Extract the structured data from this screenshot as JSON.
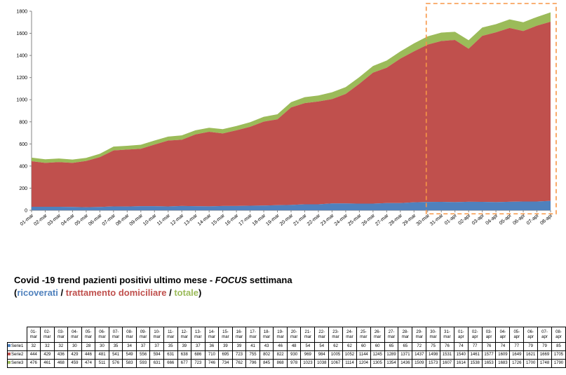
{
  "chart_data": {
    "type": "area",
    "stacked": true,
    "categories": [
      "01-mar",
      "02-mar",
      "03-mar",
      "04-mar",
      "05-mar",
      "06-mar",
      "07-mar",
      "08-mar",
      "09-mar",
      "10-mar",
      "11-mar",
      "12-mar",
      "13-mar",
      "14-mar",
      "15-mar",
      "16-mar",
      "17-mar",
      "18-mar",
      "19-mar",
      "20-mar",
      "21-mar",
      "22-mar",
      "23-mar",
      "24-mar",
      "25-mar",
      "26-mar",
      "27-mar",
      "28-mar",
      "29-mar",
      "30-mar",
      "31-mar",
      "01-apr",
      "02-apr",
      "03-apr",
      "04-apr",
      "05-apr",
      "06-apr",
      "07-apr",
      "08-apr"
    ],
    "series": [
      {
        "name": "Serie1",
        "color": "#4f81bd",
        "values": [
          32,
          32,
          32,
          30,
          28,
          30,
          35,
          34,
          37,
          37,
          35,
          39,
          37,
          36,
          39,
          39,
          41,
          43,
          46,
          48,
          54,
          54,
          62,
          62,
          60,
          60,
          65,
          65,
          72,
          75,
          76,
          74,
          77,
          76,
          74,
          77,
          79,
          79,
          85
        ]
      },
      {
        "name": "Serie2",
        "color": "#c0504d",
        "values": [
          444,
          429,
          436,
          429,
          446,
          481,
          541,
          549,
          556,
          594,
          631,
          638,
          686,
          710,
          695,
          723,
          755,
          802,
          822,
          930,
          969,
          984,
          1005,
          1052,
          1144,
          1245,
          1289,
          1371,
          1437,
          1498,
          1531,
          1540,
          1461,
          1577,
          1609,
          1649,
          1621,
          1669,
          1705
        ]
      },
      {
        "name": "Serie3",
        "color": "#9bbb59",
        "values": [
          476,
          461,
          468,
          459,
          474,
          511,
          576,
          583,
          593,
          631,
          666,
          677,
          723,
          746,
          734,
          762,
          796,
          845,
          868,
          978,
          1023,
          1038,
          1067,
          1114,
          1204,
          1305,
          1354,
          1436,
          1509,
          1573,
          1607,
          1614,
          1538,
          1653,
          1683,
          1726,
          1700,
          1748,
          1790
        ]
      }
    ],
    "ylim": [
      0,
      1800
    ],
    "yticks": [
      0,
      200,
      400,
      600,
      800,
      1000,
      1200,
      1400,
      1600,
      1800
    ],
    "grid": false,
    "highlight": {
      "from": "30-mar",
      "to": "08-apr",
      "style": "dashed",
      "color": "#f79646"
    },
    "table": {
      "header": [
        "01-mar",
        "02-mar",
        "03-mar",
        "04-mar",
        "05-mar",
        "06-mar",
        "07-mar",
        "08-mar",
        "09-mar",
        "10-mar",
        "11-mar",
        "12-mar",
        "13-mar",
        "14-mar",
        "15-mar",
        "16-mar",
        "17-mar",
        "18-mar",
        "19-mar",
        "20-mar",
        "21-mar",
        "22-mar",
        "23-mar",
        "24-mar",
        "25-mar",
        "26-mar",
        "27-mar",
        "28-mar",
        "29-mar",
        "30-mar",
        "31-mar",
        "01-apr",
        "02-apr",
        "03-apr",
        "04-apr",
        "05-apr",
        "06-apr",
        "07-apr",
        "08-apr"
      ]
    }
  },
  "caption": {
    "title_prefix": "Covid -19 trend pazienti positivi ultimo mese - ",
    "title_focus": "FOCUS",
    "title_suffix": " settimana",
    "open_paren": "(",
    "ricoverati": "ricoverati",
    "sep1": " / ",
    "domiciliare": "trattamento domiciliare",
    "sep2": "  / ",
    "totale": "totale",
    "close_paren": ")",
    "color_ricoverati": "#4f81bd",
    "color_domiciliare": "#c0504d",
    "color_totale": "#9bbb59"
  }
}
